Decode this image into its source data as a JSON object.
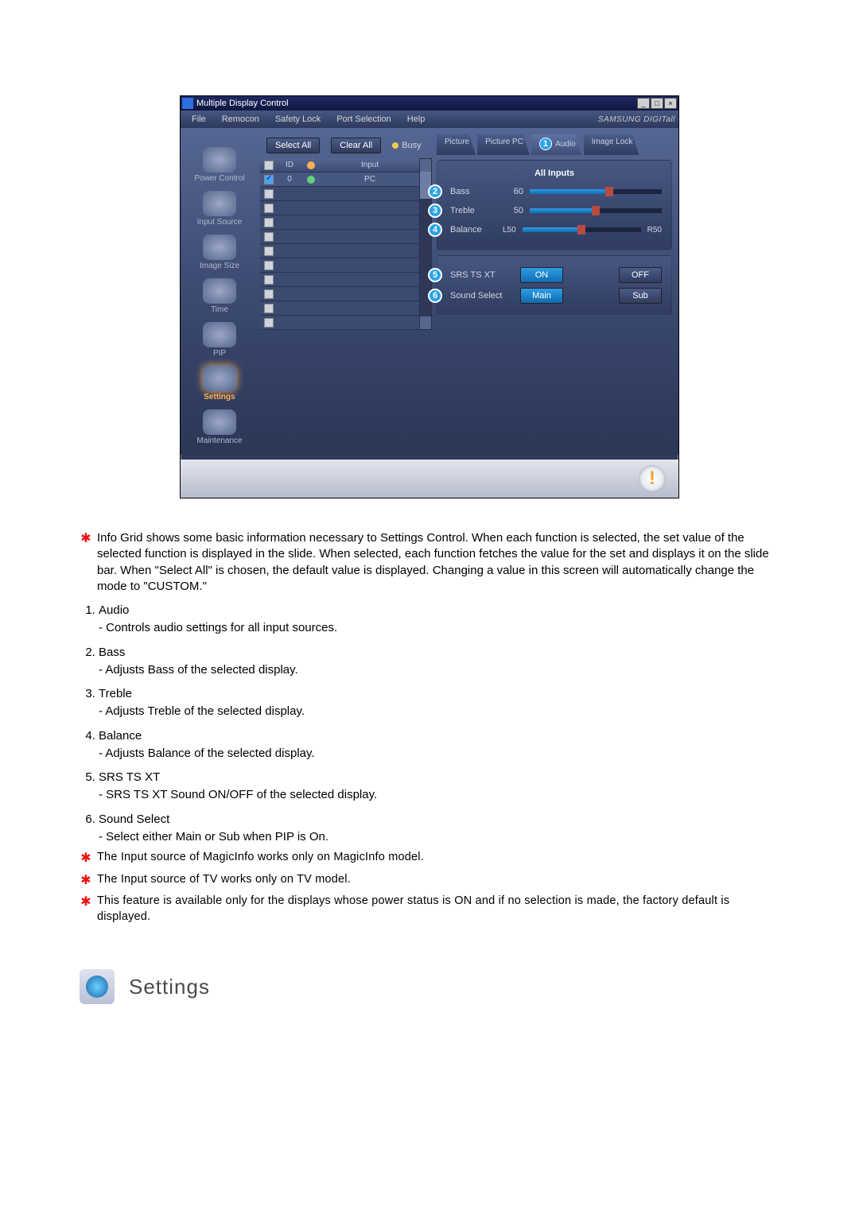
{
  "window": {
    "title": "Multiple Display Control",
    "brand": "SAMSUNG DIGITall"
  },
  "menu": {
    "file": "File",
    "remocon": "Remocon",
    "safety": "Safety Lock",
    "port": "Port Selection",
    "help": "Help"
  },
  "sidebar": {
    "items": [
      {
        "label": "Power Control"
      },
      {
        "label": "Input Source"
      },
      {
        "label": "Image Size"
      },
      {
        "label": "Time"
      },
      {
        "label": "PIP"
      },
      {
        "label": "Settings"
      },
      {
        "label": "Maintenance"
      }
    ],
    "active_index": 5
  },
  "center": {
    "select_all": "Select All",
    "clear_all": "Clear All",
    "busy": "Busy",
    "head_id": "ID",
    "head_input": "Input",
    "rows": [
      {
        "id": "0",
        "input": "PC",
        "checked": true,
        "led": "#62d27b"
      }
    ],
    "blank_rows": 10,
    "led_head": "#ffb050"
  },
  "tabs": {
    "picture": "Picture",
    "picture_pc": "Picture PC",
    "audio": "Audio",
    "image_lock": "Image Lock"
  },
  "audio_panel": {
    "title": "All Inputs",
    "sliders": [
      {
        "num": "2",
        "label": "Bass",
        "value": "60",
        "pct": 60
      },
      {
        "num": "3",
        "label": "Treble",
        "value": "50",
        "pct": 50
      },
      {
        "num": "4",
        "label": "Balance",
        "value_left": "L50",
        "value_right": "R50",
        "pct": 50
      }
    ],
    "srs": {
      "num": "5",
      "label": "SRS TS XT",
      "on": "ON",
      "off": "OFF"
    },
    "sound": {
      "num": "6",
      "label": "Sound Select",
      "main": "Main",
      "sub": "Sub"
    }
  },
  "circle_one": "1",
  "status_badge": "!",
  "doc": {
    "star1": "Info Grid shows some basic information necessary to Settings Control. When each function is selected, the set value of the selected function is displayed in the slide. When selected, each function fetches the value for the set and displays it on the slide bar. When \"Select All\" is chosen, the default value is displayed. Changing a value in this screen will automatically change the mode to \"CUSTOM.\"",
    "items": [
      {
        "t": "Audio",
        "d": "- Controls audio settings for all input sources."
      },
      {
        "t": "Bass",
        "d": "- Adjusts Bass of the selected display."
      },
      {
        "t": "Treble",
        "d": "- Adjusts Treble of the selected display."
      },
      {
        "t": "Balance",
        "d": "- Adjusts Balance of the selected display."
      },
      {
        "t": "SRS TS XT",
        "d": "- SRS TS XT Sound ON/OFF of the selected display."
      },
      {
        "t": "Sound Select",
        "d": "- Select either Main or Sub when PIP is On."
      }
    ],
    "note1": "The Input source of MagicInfo works only on MagicInfo model.",
    "note2": "The Input source of TV works only on TV model.",
    "note3": "This feature is available only for the displays whose power status is ON and if no selection is made, the factory default is displayed.",
    "settings_header": "Settings"
  }
}
